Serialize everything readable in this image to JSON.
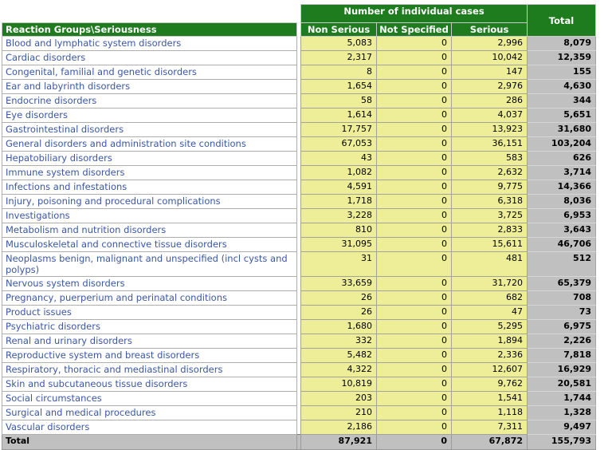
{
  "table": {
    "corner_label": "Reaction Groups\\Seriousness",
    "group_header": "Number of individual cases",
    "total_column_header": "Total",
    "columns": [
      "Non Serious",
      "Not Specified",
      "Serious"
    ],
    "rows": [
      {
        "label": "Blood and lymphatic system disorders",
        "values": [
          "5,083",
          "0",
          "2,996"
        ],
        "total": "8,079"
      },
      {
        "label": "Cardiac disorders",
        "values": [
          "2,317",
          "0",
          "10,042"
        ],
        "total": "12,359"
      },
      {
        "label": "Congenital, familial and genetic disorders",
        "values": [
          "8",
          "0",
          "147"
        ],
        "total": "155"
      },
      {
        "label": "Ear and labyrinth disorders",
        "values": [
          "1,654",
          "0",
          "2,976"
        ],
        "total": "4,630"
      },
      {
        "label": "Endocrine disorders",
        "values": [
          "58",
          "0",
          "286"
        ],
        "total": "344"
      },
      {
        "label": "Eye disorders",
        "values": [
          "1,614",
          "0",
          "4,037"
        ],
        "total": "5,651"
      },
      {
        "label": "Gastrointestinal disorders",
        "values": [
          "17,757",
          "0",
          "13,923"
        ],
        "total": "31,680"
      },
      {
        "label": "General disorders and administration site conditions",
        "values": [
          "67,053",
          "0",
          "36,151"
        ],
        "total": "103,204"
      },
      {
        "label": "Hepatobiliary disorders",
        "values": [
          "43",
          "0",
          "583"
        ],
        "total": "626"
      },
      {
        "label": "Immune system disorders",
        "values": [
          "1,082",
          "0",
          "2,632"
        ],
        "total": "3,714"
      },
      {
        "label": "Infections and infestations",
        "values": [
          "4,591",
          "0",
          "9,775"
        ],
        "total": "14,366"
      },
      {
        "label": "Injury, poisoning and procedural complications",
        "values": [
          "1,718",
          "0",
          "6,318"
        ],
        "total": "8,036"
      },
      {
        "label": "Investigations",
        "values": [
          "3,228",
          "0",
          "3,725"
        ],
        "total": "6,953"
      },
      {
        "label": "Metabolism and nutrition disorders",
        "values": [
          "810",
          "0",
          "2,833"
        ],
        "total": "3,643"
      },
      {
        "label": "Musculoskeletal and connective tissue disorders",
        "values": [
          "31,095",
          "0",
          "15,611"
        ],
        "total": "46,706"
      },
      {
        "label": "Neoplasms benign, malignant and unspecified (incl cysts and polyps)",
        "values": [
          "31",
          "0",
          "481"
        ],
        "total": "512"
      },
      {
        "label": "Nervous system disorders",
        "values": [
          "33,659",
          "0",
          "31,720"
        ],
        "total": "65,379"
      },
      {
        "label": "Pregnancy, puerperium and perinatal conditions",
        "values": [
          "26",
          "0",
          "682"
        ],
        "total": "708"
      },
      {
        "label": "Product issues",
        "values": [
          "26",
          "0",
          "47"
        ],
        "total": "73"
      },
      {
        "label": "Psychiatric disorders",
        "values": [
          "1,680",
          "0",
          "5,295"
        ],
        "total": "6,975"
      },
      {
        "label": "Renal and urinary disorders",
        "values": [
          "332",
          "0",
          "1,894"
        ],
        "total": "2,226"
      },
      {
        "label": "Reproductive system and breast disorders",
        "values": [
          "5,482",
          "0",
          "2,336"
        ],
        "total": "7,818"
      },
      {
        "label": "Respiratory, thoracic and mediastinal disorders",
        "values": [
          "4,322",
          "0",
          "12,607"
        ],
        "total": "16,929"
      },
      {
        "label": "Skin and subcutaneous tissue disorders",
        "values": [
          "10,819",
          "0",
          "9,762"
        ],
        "total": "20,581"
      },
      {
        "label": "Social circumstances",
        "values": [
          "203",
          "0",
          "1,541"
        ],
        "total": "1,744"
      },
      {
        "label": "Surgical and medical procedures",
        "values": [
          "210",
          "0",
          "1,118"
        ],
        "total": "1,328"
      },
      {
        "label": "Vascular disorders",
        "values": [
          "2,186",
          "0",
          "7,311"
        ],
        "total": "9,497"
      }
    ],
    "totals_row": {
      "label": "Total",
      "values": [
        "87,921",
        "0",
        "67,872"
      ],
      "total": "155,793"
    }
  },
  "colors": {
    "header_green": "#1E7B1E",
    "cell_yellow": "#EEEE99",
    "total_gray": "#C0C0C0",
    "row_label_blue": "#3A57A8"
  }
}
